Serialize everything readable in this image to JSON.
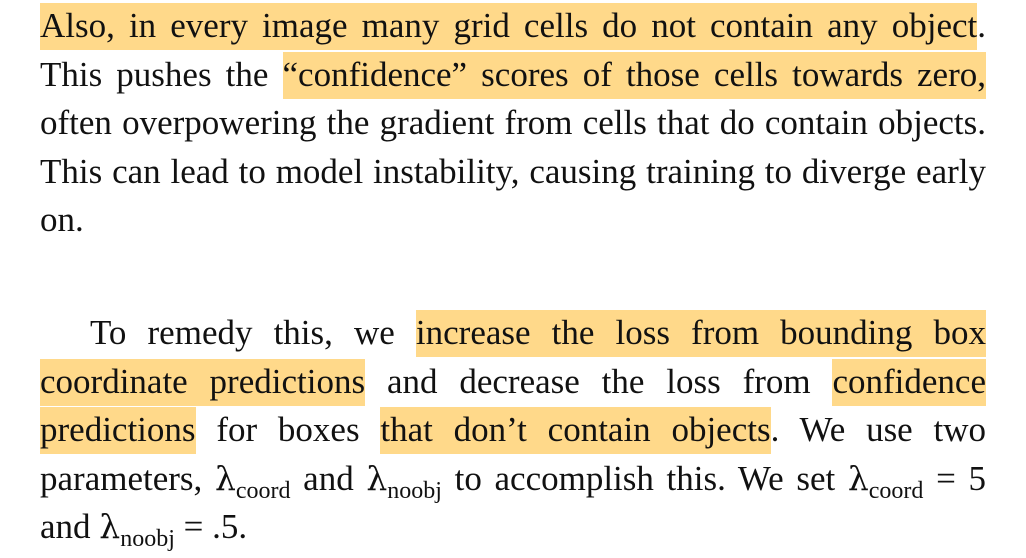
{
  "paragraph_1": {
    "hl_1": "Also, in every image many grid cells do not contain any object",
    "t_1": ". This pushes the ",
    "hl_2": "“confidence” scores of those cells towards zero,",
    "t_2": " often overpowering the gradient from cells that do contain objects. This can lead to model instability, causing training to diverge early on."
  },
  "paragraph_2": {
    "t_1": "To remedy this, we ",
    "hl_1": "increase the loss from bounding box coordinate predictions",
    "t_2": " and decrease the loss from ",
    "hl_2": "confi­dence predictions",
    "t_3": " for boxes ",
    "hl_3": "that don’t contain objects",
    "t_4": ". We use two parameters, ",
    "lambda": "λ",
    "sub_coord": "coord",
    "t_5": " and ",
    "sub_noobj": "noobj",
    "t_6": " to accomplish this. We set ",
    "t_7": " = 5 and ",
    "t_8": " = .5."
  },
  "highlight_color": "#ffd98a"
}
